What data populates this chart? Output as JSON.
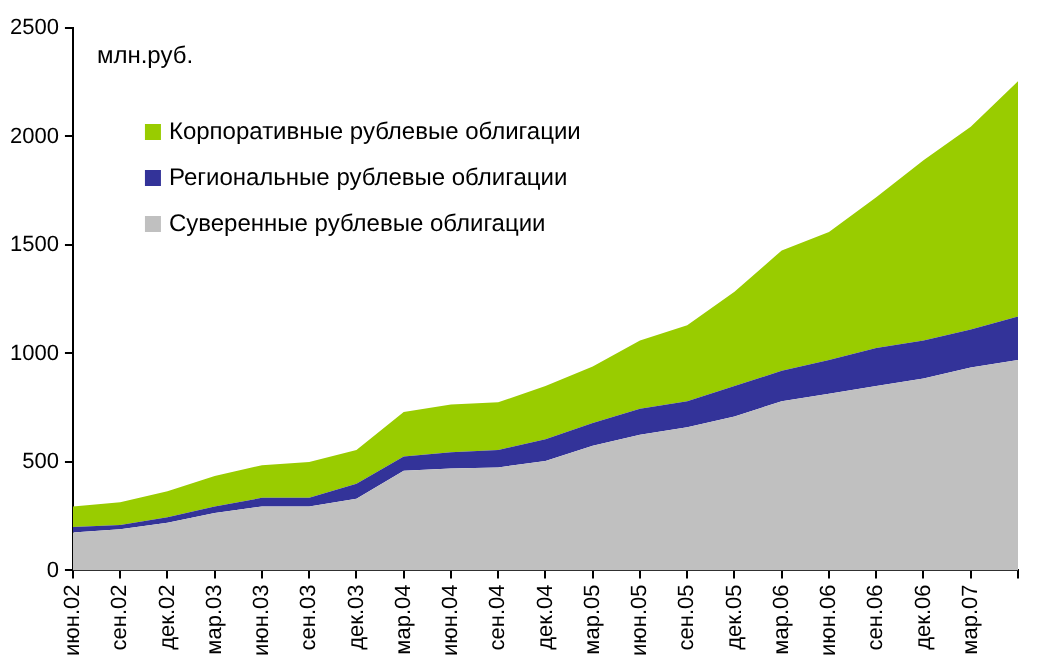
{
  "chart_data": {
    "type": "area",
    "stacked": true,
    "ylabel": "млн.руб.",
    "categories": [
      "июн.02",
      "сен.02",
      "дек.02",
      "мар.03",
      "июн.03",
      "сен.03",
      "дек.03",
      "мар.04",
      "июн.04",
      "сен.04",
      "дек.04",
      "мар.05",
      "июн.05",
      "сен.05",
      "дек.05",
      "мар.06",
      "июн.06",
      "сен.06",
      "дек.06",
      "мар.07",
      null
    ],
    "series": [
      {
        "name": "Суверенные рублевые облигации",
        "color": "#c0c0c0",
        "values": [
          175,
          190,
          220,
          265,
          295,
          295,
          330,
          460,
          470,
          475,
          505,
          575,
          625,
          660,
          710,
          780,
          815,
          850,
          885,
          935,
          970
        ]
      },
      {
        "name": "Региональные рублевые облигации",
        "color": "#333399",
        "values": [
          25,
          20,
          25,
          30,
          40,
          40,
          70,
          65,
          75,
          80,
          100,
          105,
          120,
          120,
          140,
          140,
          155,
          175,
          175,
          175,
          200
        ]
      },
      {
        "name": "Корпоративные рублевые облигации",
        "color": "#99cc00",
        "values": [
          95,
          105,
          120,
          140,
          150,
          165,
          155,
          205,
          220,
          220,
          245,
          260,
          315,
          350,
          435,
          555,
          590,
          695,
          830,
          935,
          1085
        ]
      }
    ],
    "ylim": [
      0,
      2500
    ],
    "yticks": [
      0,
      500,
      1000,
      1500,
      2000,
      2500
    ],
    "grid": false,
    "legend": "top left"
  }
}
